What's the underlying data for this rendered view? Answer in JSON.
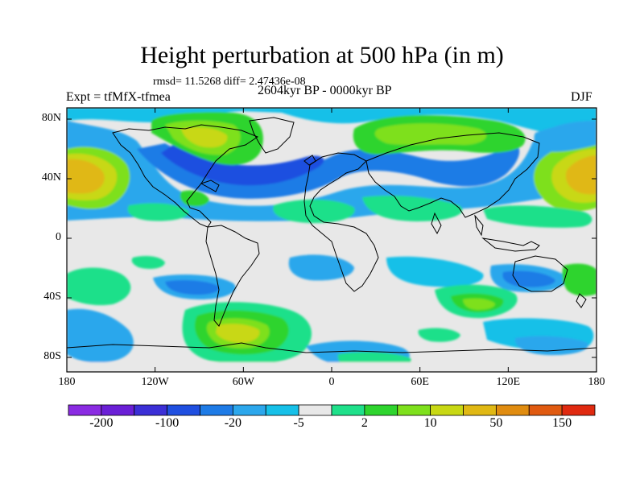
{
  "title": "Height perturbation at 500 hPa (in m)",
  "stats": "rmsd= 11.5268 diff= 2.47436e-08",
  "left_label": "Expt = tfMfX-tfmea",
  "center_label": "2604kyr BP - 0000kyr BP",
  "right_label": "DJF",
  "lat_ticks": [
    "80N",
    "40N",
    "0",
    "40S",
    "80S"
  ],
  "lon_ticks": [
    "180",
    "120W",
    "60W",
    "0",
    "60E",
    "120E",
    "180"
  ],
  "colorbar": {
    "labels": [
      "-200",
      "-100",
      "-20",
      "-5",
      "2",
      "10",
      "50",
      "150"
    ],
    "colors": [
      "#8a2be2",
      "#6a1fd6",
      "#3b2fd6",
      "#1f4fe0",
      "#1e7be6",
      "#2ca7ec",
      "#16c0e8",
      "#e8e8e8",
      "#1fe08a",
      "#2ed42e",
      "#7ee01c",
      "#c8d814",
      "#e0b814",
      "#e08c10",
      "#e05a10",
      "#e02a10"
    ]
  }
}
